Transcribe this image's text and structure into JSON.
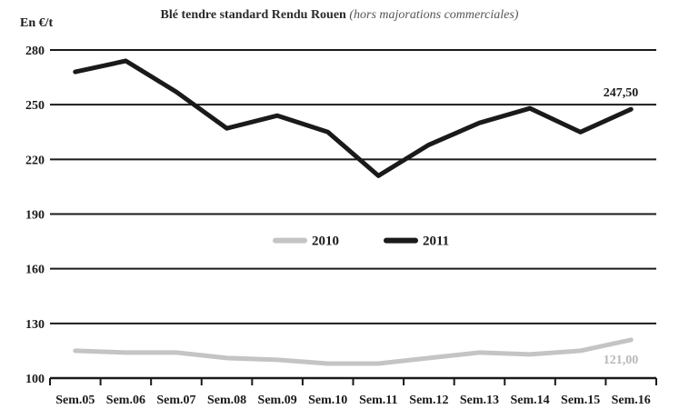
{
  "chart_data": {
    "type": "line",
    "title": "Blé tendre standard Rendu Rouen",
    "subtitle": "(hors majorations commerciales)",
    "ylabel": "En €/t",
    "xlabel": "",
    "categories": [
      "Sem.05",
      "Sem.06",
      "Sem.07",
      "Sem.08",
      "Sem.09",
      "Sem.10",
      "Sem.11",
      "Sem.12",
      "Sem.13",
      "Sem.14",
      "Sem.15",
      "Sem.16"
    ],
    "y_ticks": [
      "100",
      "130",
      "160",
      "190",
      "220",
      "250",
      "280"
    ],
    "ylim": [
      100,
      280
    ],
    "grid": true,
    "legend_position": "center",
    "series": [
      {
        "name": "2010",
        "color": "#c4c4c4",
        "values": [
          115,
          114,
          114,
          111,
          110,
          108,
          108,
          111,
          114,
          113,
          115,
          121
        ],
        "end_label": "121,00"
      },
      {
        "name": "2011",
        "color": "#1a1a1a",
        "values": [
          268,
          274,
          257,
          237,
          244,
          235,
          211,
          228,
          240,
          248,
          235,
          247.5
        ],
        "end_label": "247,50"
      }
    ]
  }
}
